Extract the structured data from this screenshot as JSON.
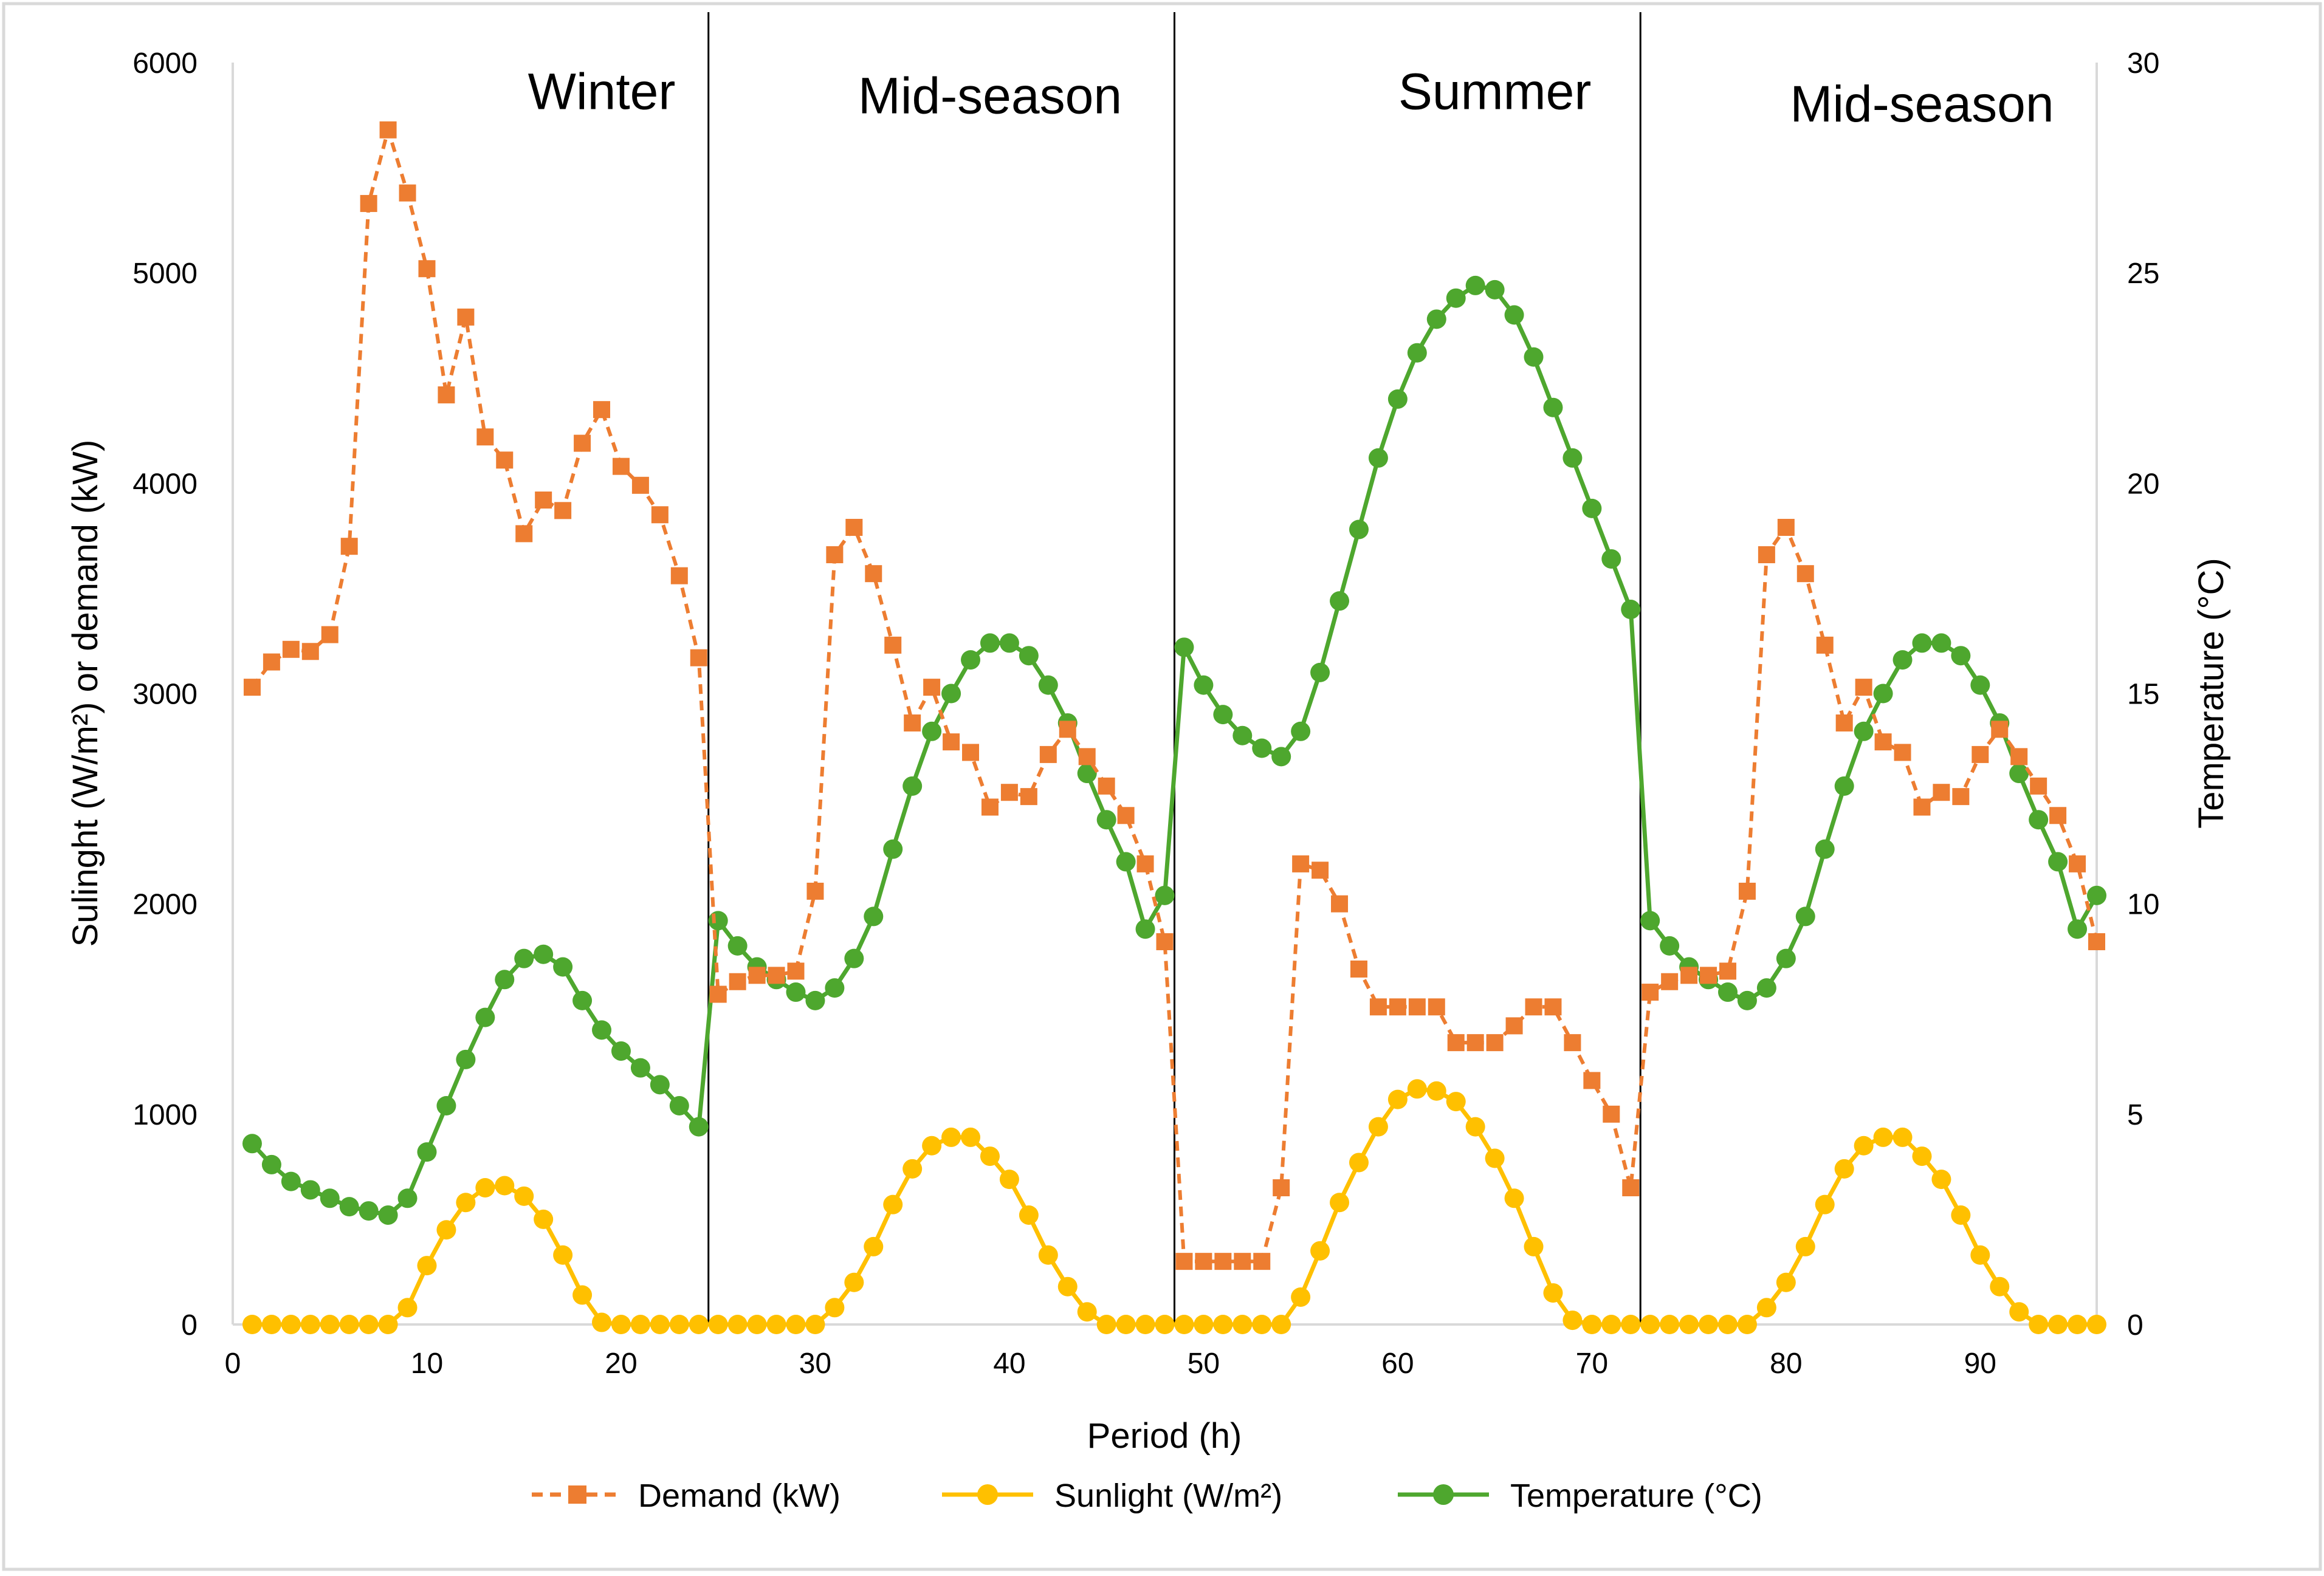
{
  "chart_data": {
    "type": "line",
    "x": [
      1,
      2,
      3,
      4,
      5,
      6,
      7,
      8,
      9,
      10,
      11,
      12,
      13,
      14,
      15,
      16,
      17,
      18,
      19,
      20,
      21,
      22,
      23,
      24,
      25,
      26,
      27,
      28,
      29,
      30,
      31,
      32,
      33,
      34,
      35,
      36,
      37,
      38,
      39,
      40,
      41,
      42,
      43,
      44,
      45,
      46,
      47,
      48,
      49,
      50,
      51,
      52,
      53,
      54,
      55,
      56,
      57,
      58,
      59,
      60,
      61,
      62,
      63,
      64,
      65,
      66,
      67,
      68,
      69,
      70,
      71,
      72,
      73,
      74,
      75,
      76,
      77,
      78,
      79,
      80,
      81,
      82,
      83,
      84,
      85,
      86,
      87,
      88,
      89,
      90,
      91,
      92,
      93,
      94,
      95,
      96
    ],
    "xlabel": "Period (h)",
    "xlim": [
      0,
      96
    ],
    "xticks": [
      0,
      10,
      20,
      30,
      40,
      50,
      60,
      70,
      80,
      90
    ],
    "ylabel_left": "Sulinght (W/m²) or demand (kW)",
    "ylim_left": [
      0,
      6000
    ],
    "yticks_left": [
      0,
      1000,
      2000,
      3000,
      4000,
      5000,
      6000
    ],
    "ylabel_right": "Temperature (°C)",
    "ylim_right": [
      0,
      30
    ],
    "yticks_right": [
      0,
      5,
      10,
      15,
      20,
      25,
      30
    ],
    "grid": false,
    "legend_position": "bottom",
    "season_dividers": [
      24.5,
      48.5,
      72.5
    ],
    "seasons": [
      {
        "label": "Winter",
        "x": 19,
        "value": 5860
      },
      {
        "label": "Mid-season",
        "x": 39,
        "value": 5840
      },
      {
        "label": "Summer",
        "x": 65,
        "value": 5860
      },
      {
        "label": "Mid-season",
        "x": 87,
        "value": 5800
      }
    ],
    "series": [
      {
        "name": "Demand (kW)",
        "axis": "left",
        "color": "#ED7D31",
        "dashed": true,
        "marker": "square",
        "values": [
          3030,
          3150,
          3210,
          3200,
          3280,
          3700,
          5330,
          5680,
          5380,
          5020,
          4420,
          4790,
          4220,
          4110,
          3760,
          3920,
          3870,
          4190,
          4350,
          4080,
          3990,
          3850,
          3560,
          3170,
          1570,
          1630,
          1660,
          1660,
          1680,
          2060,
          3660,
          3790,
          3570,
          3230,
          2860,
          3030,
          2770,
          2720,
          2460,
          2530,
          2510,
          2710,
          2830,
          2700,
          2560,
          2420,
          2190,
          1820,
          300,
          300,
          300,
          300,
          300,
          650,
          2190,
          2160,
          2000,
          1690,
          1510,
          1510,
          1510,
          1510,
          1340,
          1340,
          1340,
          1420,
          1510,
          1510,
          1340,
          1160,
          1000,
          650,
          1580,
          1630,
          1660,
          1660,
          1680,
          2060,
          3660,
          3790,
          3570,
          3230,
          2860,
          3030,
          2770,
          2720,
          2460,
          2530,
          2510,
          2710,
          2830,
          2700,
          2560,
          2420,
          2190,
          1820
        ]
      },
      {
        "name": "Sunlight (W/m²)",
        "axis": "left",
        "color": "#FFC000",
        "dashed": false,
        "marker": "circle",
        "values": [
          0,
          0,
          0,
          0,
          0,
          0,
          0,
          0,
          80,
          280,
          450,
          580,
          650,
          660,
          610,
          500,
          330,
          140,
          10,
          0,
          0,
          0,
          0,
          0,
          0,
          0,
          0,
          0,
          0,
          0,
          80,
          200,
          370,
          570,
          740,
          850,
          890,
          890,
          800,
          690,
          520,
          330,
          180,
          60,
          0,
          0,
          0,
          0,
          0,
          0,
          0,
          0,
          0,
          0,
          130,
          350,
          580,
          770,
          940,
          1070,
          1120,
          1110,
          1060,
          940,
          790,
          600,
          370,
          150,
          20,
          0,
          0,
          0,
          0,
          0,
          0,
          0,
          0,
          0,
          80,
          200,
          370,
          570,
          740,
          850,
          890,
          890,
          800,
          690,
          520,
          330,
          180,
          60,
          0,
          0,
          0,
          0
        ]
      },
      {
        "name": "Temperature (°C)",
        "axis": "right",
        "color": "#4EA72E",
        "dashed": false,
        "marker": "circle",
        "values": [
          4.3,
          3.8,
          3.4,
          3.2,
          3.0,
          2.8,
          2.7,
          2.6,
          3.0,
          4.1,
          5.2,
          6.3,
          7.3,
          8.2,
          8.7,
          8.8,
          8.5,
          7.7,
          7.0,
          6.5,
          6.1,
          5.7,
          5.2,
          4.7,
          9.6,
          9.0,
          8.5,
          8.2,
          7.9,
          7.7,
          8.0,
          8.7,
          9.7,
          11.3,
          12.8,
          14.1,
          15.0,
          15.8,
          16.2,
          16.2,
          15.9,
          15.2,
          14.3,
          13.1,
          12.0,
          11.0,
          9.4,
          10.2,
          16.1,
          15.2,
          14.5,
          14.0,
          13.7,
          13.5,
          14.1,
          15.5,
          17.2,
          18.9,
          20.6,
          22.0,
          23.1,
          23.9,
          24.4,
          24.7,
          24.6,
          24.0,
          23.0,
          21.8,
          20.6,
          19.4,
          18.2,
          17.0,
          9.6,
          9.0,
          8.5,
          8.2,
          7.9,
          7.7,
          8.0,
          8.7,
          9.7,
          11.3,
          12.8,
          14.1,
          15.0,
          15.8,
          16.2,
          16.2,
          15.9,
          15.2,
          14.3,
          13.1,
          12.0,
          11.0,
          9.4,
          10.2
        ]
      }
    ]
  }
}
